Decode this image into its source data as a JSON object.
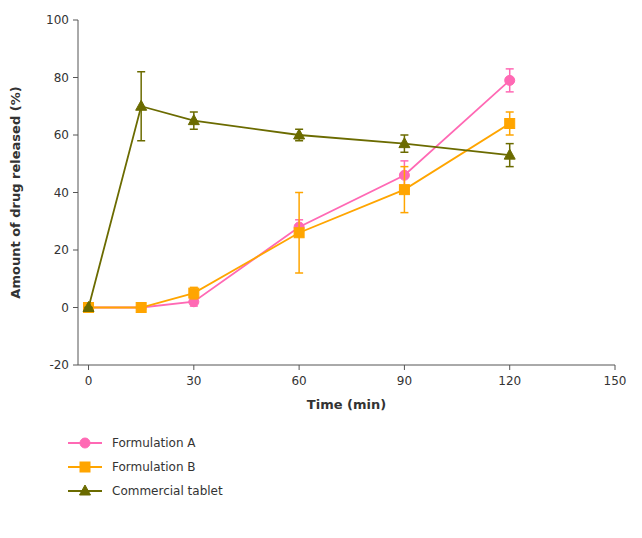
{
  "chart_data": {
    "type": "line",
    "xlabel": "Time (min)",
    "ylabel": "Amount of drug released (%)",
    "x": [
      0,
      15,
      30,
      60,
      90,
      120
    ],
    "xlim": [
      -3,
      150
    ],
    "ylim": [
      -20,
      100
    ],
    "xticks": [
      0,
      30,
      60,
      90,
      120,
      150
    ],
    "yticks": [
      -20,
      0,
      20,
      40,
      60,
      80,
      100
    ],
    "grid": false,
    "legend": "bottom",
    "series": [
      {
        "name": "Formulation A",
        "color": "#FF69B4",
        "marker": "circle",
        "values": [
          0,
          0,
          2,
          28,
          46,
          79
        ],
        "errors": [
          0,
          0,
          1.5,
          2.5,
          5,
          4
        ]
      },
      {
        "name": "Formulation B",
        "color": "#FFA500",
        "marker": "square",
        "values": [
          0,
          0,
          5,
          26,
          41,
          64
        ],
        "errors": [
          0,
          0.5,
          2,
          14,
          8,
          4
        ]
      },
      {
        "name": "Commercial tablet",
        "color": "#6B6B00",
        "marker": "triangle",
        "values": [
          0,
          70,
          65,
          60,
          57,
          53
        ],
        "errors": [
          0,
          12,
          3,
          2,
          3,
          4
        ]
      }
    ]
  }
}
